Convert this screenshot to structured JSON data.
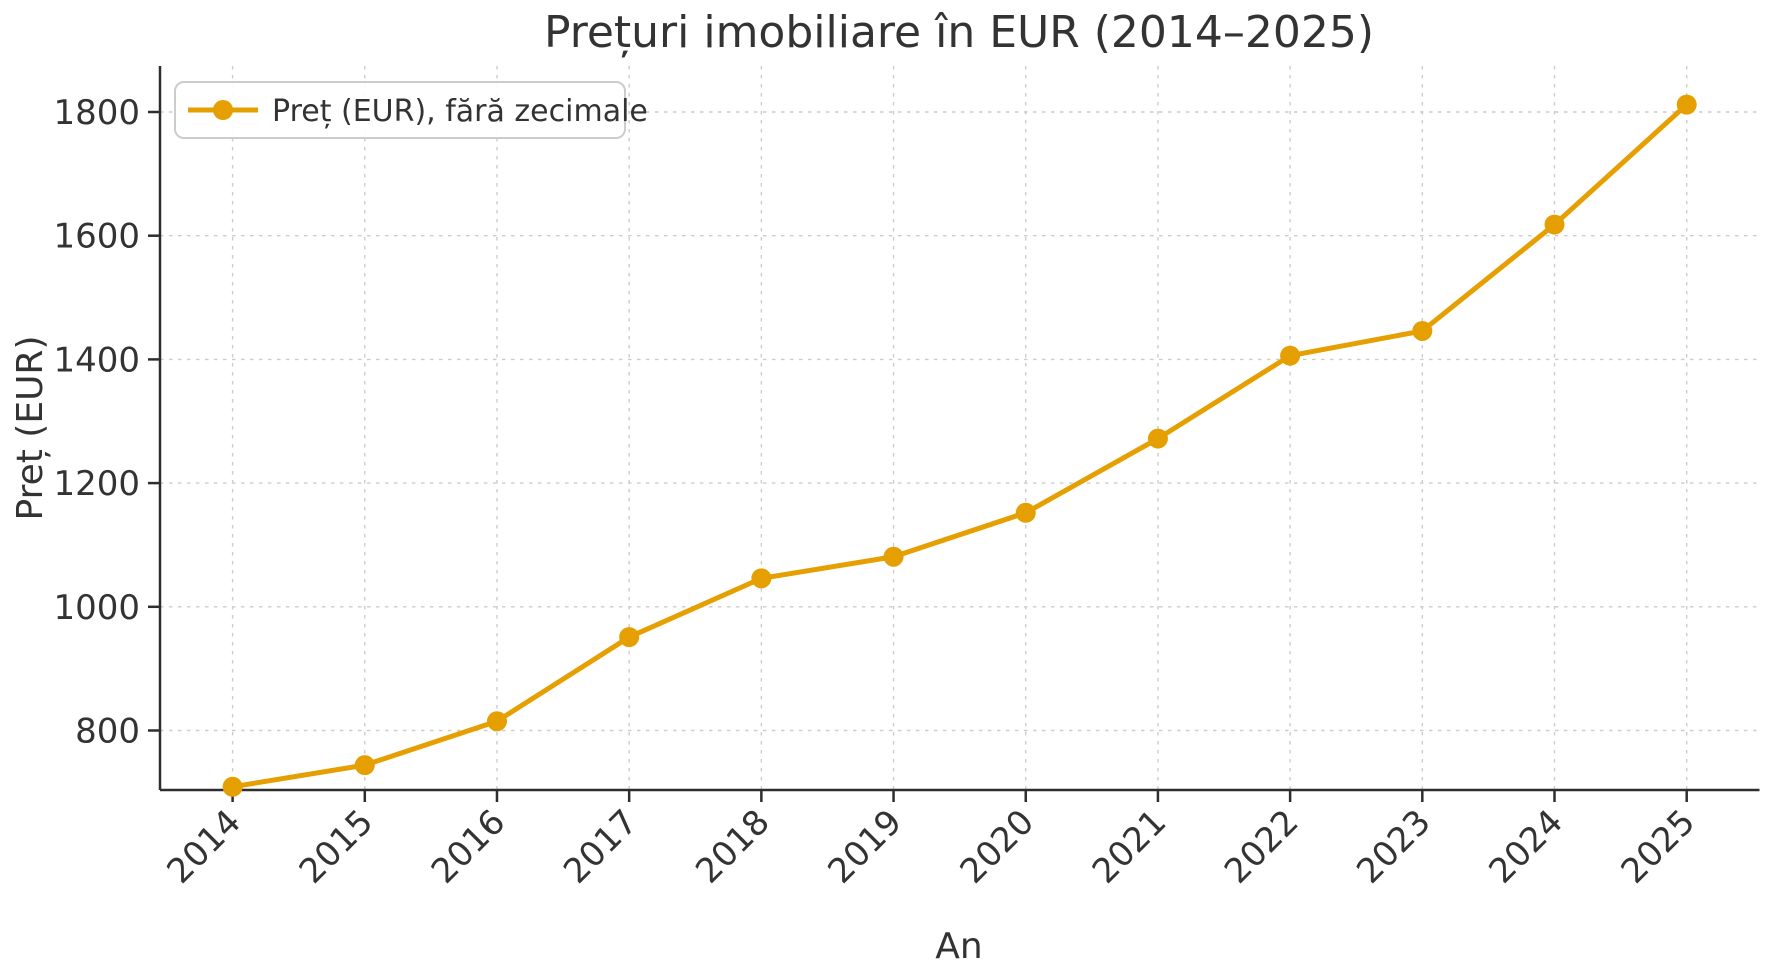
{
  "chart_data": {
    "type": "line",
    "title": "Prețuri imobiliare în EUR (2014–2025)",
    "xlabel": "An",
    "ylabel": "Preț (EUR)",
    "x": [
      2014,
      2015,
      2016,
      2017,
      2018,
      2019,
      2020,
      2021,
      2022,
      2023,
      2024,
      2025
    ],
    "series": [
      {
        "name": "Preț (EUR), fără zecimale",
        "values": [
          709,
          744,
          815,
          951,
          1046,
          1081,
          1152,
          1272,
          1406,
          1446,
          1618,
          1812
        ]
      }
    ],
    "yticks": [
      800,
      1000,
      1200,
      1400,
      1600,
      1800
    ],
    "ylim": [
      704,
      1874
    ],
    "grid": true,
    "grid_style": "dashed",
    "legend_position": "upper left",
    "marker": "circle",
    "colors": {
      "line": "#E69F00",
      "grid": "#CCCCCC",
      "text": "#333333",
      "spine": "#2E2E2E",
      "background": "#FFFFFF",
      "legend_border": "#CCCCCC",
      "legend_fill": "#FFFFFF"
    }
  }
}
